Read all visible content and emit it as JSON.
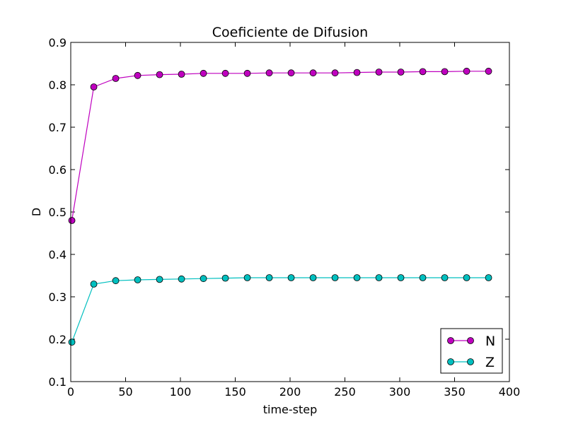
{
  "chart_data": {
    "type": "line",
    "title": "Coeficiente de Difusion",
    "xlabel": "time-step",
    "ylabel": "D",
    "xlim": [
      0,
      400
    ],
    "ylim": [
      0.1,
      0.9
    ],
    "xticks": [
      "0",
      "50",
      "100",
      "150",
      "200",
      "250",
      "300",
      "350",
      "400"
    ],
    "yticks": [
      "0.1",
      "0.2",
      "0.3",
      "0.4",
      "0.5",
      "0.6",
      "0.7",
      "0.8",
      "0.9"
    ],
    "grid": false,
    "legend_position": "lower-right",
    "x": [
      1,
      21,
      41,
      61,
      81,
      101,
      121,
      141,
      161,
      181,
      201,
      221,
      241,
      261,
      281,
      301,
      321,
      341,
      361,
      381
    ],
    "series": [
      {
        "name": "N",
        "color": "#bf00bf",
        "marker": "circle",
        "values": [
          0.48,
          0.795,
          0.815,
          0.822,
          0.824,
          0.825,
          0.827,
          0.827,
          0.827,
          0.828,
          0.828,
          0.828,
          0.828,
          0.829,
          0.83,
          0.83,
          0.831,
          0.831,
          0.832,
          0.832
        ]
      },
      {
        "name": "Z",
        "color": "#00bfbf",
        "marker": "circle",
        "values": [
          0.193,
          0.33,
          0.338,
          0.34,
          0.341,
          0.342,
          0.343,
          0.344,
          0.345,
          0.345,
          0.345,
          0.345,
          0.345,
          0.345,
          0.345,
          0.345,
          0.345,
          0.345,
          0.345,
          0.345
        ]
      }
    ]
  }
}
